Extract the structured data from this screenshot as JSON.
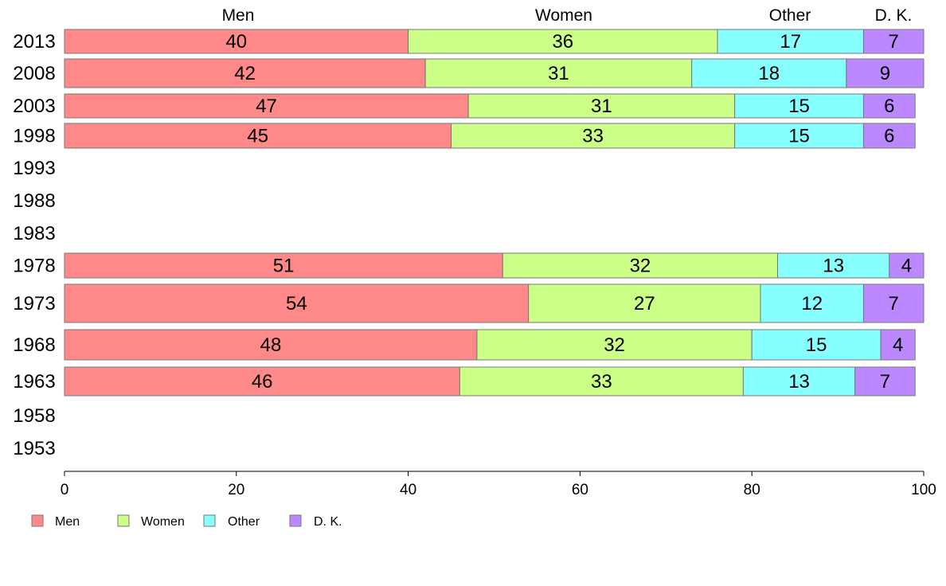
{
  "chart_data": {
    "type": "bar",
    "orientation": "horizontal",
    "stacked": true,
    "categories": [
      "2013",
      "2008",
      "2003",
      "1998",
      "1993",
      "1988",
      "1983",
      "1978",
      "1973",
      "1968",
      "1963",
      "1958",
      "1953"
    ],
    "series": [
      {
        "name": "Men",
        "color": "#ff8888",
        "values": [
          40,
          42,
          47,
          45,
          null,
          null,
          null,
          51,
          54,
          48,
          46,
          null,
          null
        ]
      },
      {
        "name": "Women",
        "color": "#ccff88",
        "values": [
          36,
          31,
          31,
          33,
          null,
          null,
          null,
          32,
          27,
          32,
          33,
          null,
          null
        ]
      },
      {
        "name": "Other",
        "color": "#88ffff",
        "values": [
          17,
          18,
          15,
          15,
          null,
          null,
          null,
          13,
          12,
          15,
          13,
          null,
          null
        ]
      },
      {
        "name": "D. K.",
        "color": "#bb88ff",
        "values": [
          7,
          9,
          6,
          6,
          null,
          null,
          null,
          4,
          7,
          4,
          7,
          null,
          null
        ]
      }
    ],
    "column_headers": [
      "Men",
      "Women",
      "Other",
      "D. K."
    ],
    "xlim": [
      0,
      100
    ],
    "xticks": [
      "0",
      "20",
      "40",
      "60",
      "80",
      "100"
    ],
    "legend_placement": "bottom-left",
    "grid": false
  }
}
